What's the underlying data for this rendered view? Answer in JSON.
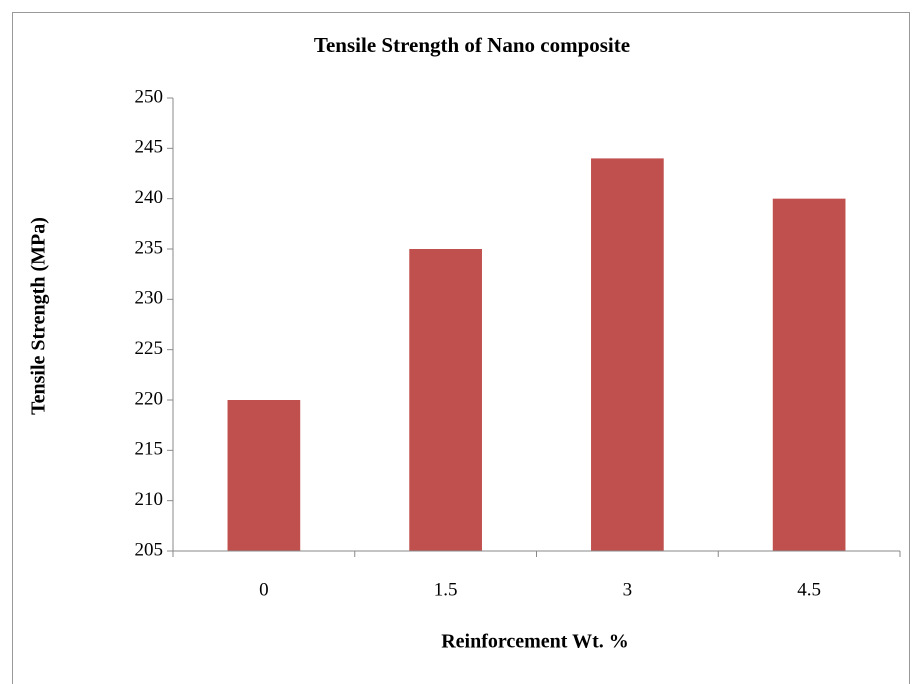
{
  "chart_data": {
    "type": "bar",
    "title": "Tensile Strength of Nano composite",
    "x_label": "Reinforcement Wt. %",
    "y_label": "Tensile Strength (MPa)",
    "categories": [
      "0",
      "1.5",
      "3",
      "4.5"
    ],
    "values": [
      220,
      235,
      244,
      240
    ],
    "color": "#c0504d",
    "ylim": [
      205,
      250
    ],
    "yticks": [
      205,
      210,
      215,
      220,
      225,
      230,
      235,
      240,
      245,
      250
    ],
    "grid": false
  }
}
